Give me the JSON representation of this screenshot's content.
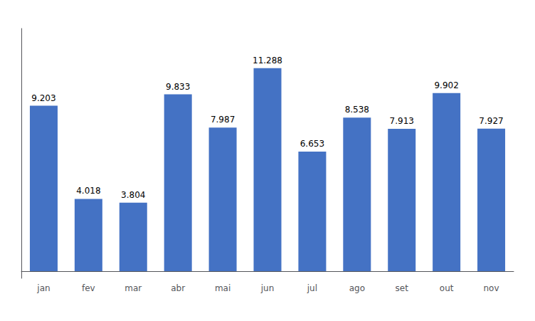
{
  "chart_data": {
    "type": "bar",
    "categories": [
      "jan",
      "fev",
      "mar",
      "abr",
      "mai",
      "jun",
      "jul",
      "ago",
      "set",
      "out",
      "nov"
    ],
    "values": [
      9.203,
      4.018,
      3.804,
      9.833,
      7.987,
      11.288,
      6.653,
      8.538,
      7.913,
      9.902,
      7.927
    ],
    "color": "#4472C4",
    "ylim": [
      -0.4,
      13.5
    ],
    "grid": false,
    "data_labels": true,
    "tick_labels": "x"
  }
}
